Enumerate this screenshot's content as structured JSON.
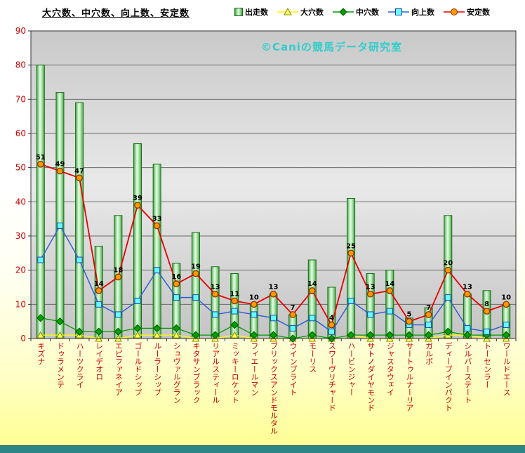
{
  "title": "大穴数、中穴数、向上数、安定数",
  "watermark": "©Caniの競馬データ研究室",
  "colors": {
    "bar_edge": "#4aa44a",
    "bar_light": "#e2ffe2",
    "bar_stroke": "#156e15",
    "big_upset_line": "#ffff00",
    "big_upset_marker": "#ffff66",
    "big_upset_marker_edge": "#8a8a00",
    "mid_upset_line": "#009900",
    "mid_upset_marker": "#00a000",
    "mid_upset_marker_edge": "#005500",
    "improve_line": "#3060d0",
    "improve_marker": "#66ffff",
    "improve_marker_edge": "#2244aa",
    "stable_line": "#e60000",
    "stable_marker": "#ff9900",
    "stable_marker_edge": "#883300",
    "axis_text": "#cc0000",
    "data_label_text": "#000000",
    "watermark_text": "#33cccc",
    "footer_bar": "#2e8585",
    "plot_top": "#c9c9c9",
    "plot_mid": "#e9e9e9",
    "plot_bottom": "#c4c4c4",
    "grid_line": "#6b6b6b",
    "axis_line": "#333333"
  },
  "chart_data": {
    "type": "bar",
    "subtype": "bar+line combo",
    "title": "大穴数、中穴数、向上数、安定数",
    "xlabel": "",
    "ylabel": "",
    "ylim": [
      0,
      90
    ],
    "yticks": [
      0,
      10,
      20,
      30,
      40,
      50,
      60,
      70,
      80,
      90
    ],
    "grid": true,
    "legend_position": "top",
    "categories": [
      "キズナ",
      "ドゥラメンテ",
      "ハーツクライ",
      "レイデオロ",
      "エピファネイア",
      "ゴールドシップ",
      "ルーラーシップ",
      "シュヴァルグラン",
      "キタサンブラック",
      "リアルスティール",
      "ミッキーロケット",
      "フィエールマン",
      "ブリックスアンドモルタル",
      "ウインブライト",
      "モーリス",
      "スワーヴリチャード",
      "ハービンジャー",
      "サトノダイヤモンド",
      "ジャスタウェイ",
      "サートゥルナーリア",
      "ガルボ",
      "ディープインパクト",
      "シルバーステート",
      "トーセンラー",
      "ワールドエース"
    ],
    "series": [
      {
        "name": "出走数",
        "type": "bar",
        "marker": "none",
        "values": [
          80,
          72,
          69,
          27,
          36,
          57,
          51,
          22,
          31,
          21,
          19,
          10,
          13,
          7,
          23,
          15,
          41,
          19,
          20,
          6,
          9,
          36,
          13,
          14,
          10
        ]
      },
      {
        "name": "大穴数",
        "type": "line",
        "marker": "triangle",
        "values": [
          1,
          1,
          1,
          0,
          0,
          1,
          1,
          1,
          0,
          0,
          1,
          0,
          0,
          0,
          0,
          0,
          1,
          0,
          0,
          0,
          0,
          1,
          1,
          0,
          0
        ]
      },
      {
        "name": "中穴数",
        "type": "line",
        "marker": "diamond",
        "values": [
          6,
          5,
          2,
          2,
          2,
          3,
          3,
          3,
          1,
          1,
          4,
          1,
          1,
          0,
          1,
          0,
          1,
          1,
          1,
          1,
          1,
          2,
          1,
          1,
          1
        ]
      },
      {
        "name": "向上数",
        "type": "line",
        "marker": "square",
        "values": [
          23,
          33,
          23,
          10,
          7,
          11,
          20,
          12,
          12,
          7,
          8,
          7,
          6,
          3,
          6,
          2,
          11,
          7,
          8,
          4,
          4,
          12,
          3,
          2,
          4
        ]
      },
      {
        "name": "安定数",
        "type": "line",
        "marker": "circle",
        "data_labels": true,
        "values": [
          51,
          49,
          47,
          14,
          18,
          39,
          33,
          16,
          19,
          13,
          11,
          10,
          13,
          7,
          14,
          4,
          25,
          13,
          14,
          5,
          7,
          20,
          13,
          8,
          10
        ]
      }
    ]
  }
}
